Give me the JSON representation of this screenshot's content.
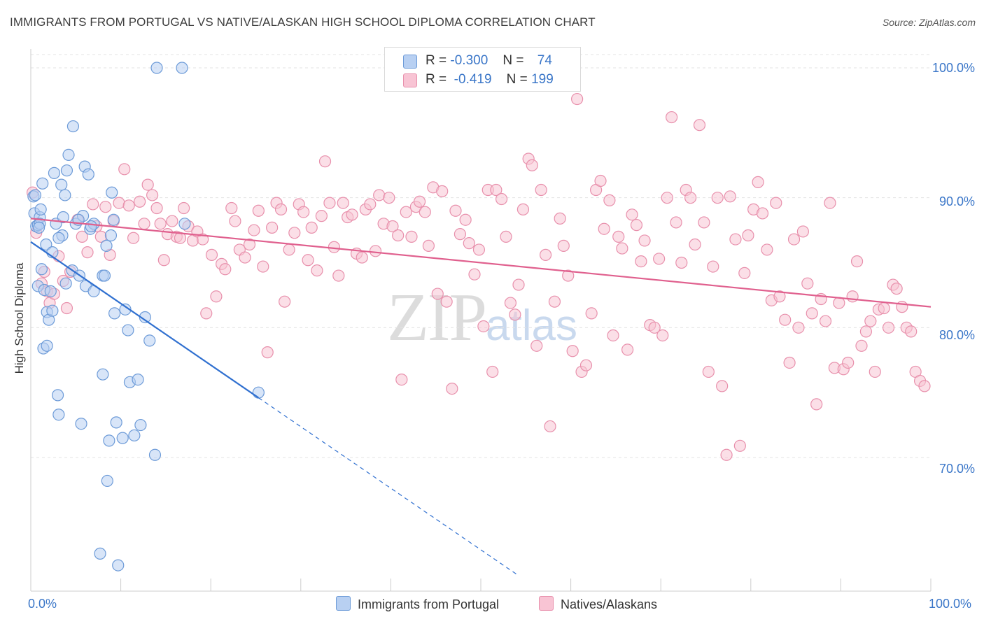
{
  "title": "IMMIGRANTS FROM PORTUGAL VS NATIVE/ALASKAN HIGH SCHOOL DIPLOMA CORRELATION CHART",
  "source": "Source: ZipAtlas.com",
  "watermark": {
    "zip": "ZIP",
    "atlas": "atlas"
  },
  "legend": {
    "r_label": "R =",
    "n_label": "N =",
    "rows": [
      {
        "r": "-0.300",
        "n": "74"
      },
      {
        "r": "-0.419",
        "n": "199"
      }
    ]
  },
  "colors": {
    "blue_fill": "#b8d0f2",
    "blue_stroke": "#6d9bd8",
    "blue_line": "#3070d0",
    "pink_fill": "#f8c4d4",
    "pink_stroke": "#e890ac",
    "pink_line": "#e0608e",
    "tick_text": "#3a76c8"
  },
  "chart_data": {
    "type": "scatter",
    "title": "IMMIGRANTS FROM PORTUGAL VS NATIVE/ALASKAN HIGH SCHOOL DIPLOMA CORRELATION CHART",
    "xlabel": "",
    "ylabel": "High School Diploma",
    "xlim": [
      0,
      100
    ],
    "ylim": [
      61,
      102
    ],
    "x_ticks": [
      "0.0%",
      "100.0%"
    ],
    "y_ticks": [
      {
        "value": 100,
        "label": "100.0%"
      },
      {
        "value": 90,
        "label": "90.0%"
      },
      {
        "value": 80,
        "label": "80.0%"
      },
      {
        "value": 70,
        "label": "70.0%"
      }
    ],
    "grid": true,
    "legend_position": "top-center",
    "series": [
      {
        "name": "Immigrants from Portugal",
        "r": -0.3,
        "n": 74,
        "trend": {
          "x0": 0,
          "y0": 86.6,
          "x1": 25.3,
          "y1": 74.6,
          "dashed_to_x": 54,
          "dashed_to_y": 61
        },
        "points": [
          [
            0.3,
            90.1
          ],
          [
            0.4,
            88.8
          ],
          [
            0.6,
            87.8
          ],
          [
            0.8,
            87.9
          ],
          [
            0.8,
            83.2
          ],
          [
            1.0,
            88.5
          ],
          [
            1.1,
            89.1
          ],
          [
            1.3,
            91.1
          ],
          [
            1.4,
            78.4
          ],
          [
            1.5,
            82.9
          ],
          [
            1.7,
            86.4
          ],
          [
            1.8,
            81.2
          ],
          [
            1.8,
            78.6
          ],
          [
            2.0,
            80.6
          ],
          [
            2.2,
            82.8
          ],
          [
            2.4,
            85.8
          ],
          [
            2.6,
            91.9
          ],
          [
            2.8,
            88.0
          ],
          [
            3.0,
            74.8
          ],
          [
            3.1,
            73.3
          ],
          [
            3.4,
            91.0
          ],
          [
            3.5,
            87.1
          ],
          [
            3.6,
            88.5
          ],
          [
            3.8,
            90.2
          ],
          [
            3.9,
            83.4
          ],
          [
            4.0,
            92.1
          ],
          [
            4.2,
            93.3
          ],
          [
            4.6,
            84.4
          ],
          [
            4.7,
            95.5
          ],
          [
            5.0,
            88.0
          ],
          [
            5.4,
            84.0
          ],
          [
            5.6,
            72.6
          ],
          [
            5.8,
            88.6
          ],
          [
            6.0,
            92.4
          ],
          [
            6.1,
            83.2
          ],
          [
            6.4,
            91.8
          ],
          [
            6.6,
            87.6
          ],
          [
            7.0,
            82.8
          ],
          [
            7.0,
            88.0
          ],
          [
            7.7,
            62.6
          ],
          [
            8.0,
            84.0
          ],
          [
            8.0,
            76.4
          ],
          [
            8.2,
            84.0
          ],
          [
            8.4,
            86.3
          ],
          [
            8.5,
            68.2
          ],
          [
            8.7,
            71.3
          ],
          [
            8.9,
            87.1
          ],
          [
            9.0,
            90.4
          ],
          [
            9.2,
            88.3
          ],
          [
            9.3,
            81.1
          ],
          [
            9.5,
            72.7
          ],
          [
            9.7,
            61.7
          ],
          [
            10.2,
            71.5
          ],
          [
            10.5,
            81.4
          ],
          [
            10.8,
            79.8
          ],
          [
            11.0,
            75.8
          ],
          [
            11.5,
            71.7
          ],
          [
            11.9,
            76.0
          ],
          [
            12.2,
            72.5
          ],
          [
            12.7,
            80.8
          ],
          [
            13.2,
            79.0
          ],
          [
            13.8,
            70.2
          ],
          [
            14.0,
            100.0
          ],
          [
            16.8,
            100.0
          ],
          [
            17.1,
            88.0
          ],
          [
            25.3,
            75.0
          ],
          [
            0.5,
            90.2
          ],
          [
            1.2,
            84.5
          ],
          [
            2.4,
            81.3
          ],
          [
            3.1,
            86.9
          ],
          [
            5.3,
            88.3
          ],
          [
            6.7,
            87.8
          ],
          [
            1.0,
            88.0
          ],
          [
            0.9,
            87.7
          ]
        ]
      },
      {
        "name": "Natives/Alaskans",
        "r": -0.419,
        "n": 199,
        "trend": {
          "x0": 0,
          "y0": 88.4,
          "x1": 100,
          "y1": 81.6
        },
        "points": [
          [
            0.2,
            90.4
          ],
          [
            0.6,
            87.3
          ],
          [
            1.2,
            83.4
          ],
          [
            1.5,
            84.3
          ],
          [
            1.8,
            82.8
          ],
          [
            2.1,
            81.9
          ],
          [
            2.6,
            82.6
          ],
          [
            3.1,
            85.5
          ],
          [
            3.6,
            83.6
          ],
          [
            4.0,
            81.5
          ],
          [
            4.4,
            84.3
          ],
          [
            5.2,
            88.3
          ],
          [
            5.7,
            87.0
          ],
          [
            6.3,
            85.8
          ],
          [
            6.9,
            89.5
          ],
          [
            7.3,
            87.8
          ],
          [
            7.8,
            87.0
          ],
          [
            8.3,
            89.3
          ],
          [
            8.8,
            85.6
          ],
          [
            9.2,
            88.2
          ],
          [
            9.8,
            89.6
          ],
          [
            10.4,
            92.2
          ],
          [
            10.9,
            89.4
          ],
          [
            11.4,
            86.9
          ],
          [
            12.1,
            89.7
          ],
          [
            12.6,
            88.0
          ],
          [
            13.0,
            91.0
          ],
          [
            13.5,
            90.2
          ],
          [
            14.0,
            89.2
          ],
          [
            14.4,
            88.0
          ],
          [
            14.8,
            85.2
          ],
          [
            15.2,
            87.2
          ],
          [
            15.7,
            88.2
          ],
          [
            16.2,
            87.0
          ],
          [
            16.6,
            86.9
          ],
          [
            17.0,
            89.2
          ],
          [
            17.5,
            87.8
          ],
          [
            18.0,
            86.7
          ],
          [
            18.5,
            87.4
          ],
          [
            19.1,
            86.8
          ],
          [
            19.5,
            81.1
          ],
          [
            20.1,
            85.6
          ],
          [
            20.6,
            82.4
          ],
          [
            21.2,
            84.9
          ],
          [
            21.6,
            84.5
          ],
          [
            22.3,
            89.2
          ],
          [
            22.7,
            88.2
          ],
          [
            23.2,
            86.0
          ],
          [
            23.8,
            85.4
          ],
          [
            24.3,
            86.4
          ],
          [
            24.8,
            87.5
          ],
          [
            25.3,
            89.0
          ],
          [
            25.8,
            84.7
          ],
          [
            26.3,
            78.1
          ],
          [
            26.8,
            87.7
          ],
          [
            27.3,
            89.6
          ],
          [
            27.8,
            89.1
          ],
          [
            28.2,
            82.0
          ],
          [
            28.7,
            86.0
          ],
          [
            29.3,
            87.3
          ],
          [
            29.8,
            89.5
          ],
          [
            30.3,
            88.9
          ],
          [
            30.8,
            85.2
          ],
          [
            31.2,
            87.7
          ],
          [
            31.8,
            84.4
          ],
          [
            32.3,
            88.6
          ],
          [
            32.7,
            92.8
          ],
          [
            33.2,
            89.6
          ],
          [
            33.7,
            86.2
          ],
          [
            34.2,
            84.0
          ],
          [
            34.7,
            89.6
          ],
          [
            35.2,
            88.5
          ],
          [
            35.7,
            88.7
          ],
          [
            36.2,
            85.7
          ],
          [
            36.8,
            85.4
          ],
          [
            37.2,
            89.1
          ],
          [
            37.7,
            89.5
          ],
          [
            38.3,
            85.9
          ],
          [
            38.7,
            90.2
          ],
          [
            39.2,
            88.0
          ],
          [
            39.8,
            90.0
          ],
          [
            40.2,
            87.8
          ],
          [
            40.8,
            87.1
          ],
          [
            41.2,
            76.0
          ],
          [
            41.7,
            88.9
          ],
          [
            42.3,
            87.0
          ],
          [
            42.8,
            89.3
          ],
          [
            43.2,
            89.7
          ],
          [
            43.8,
            88.9
          ],
          [
            44.2,
            86.3
          ],
          [
            44.7,
            90.8
          ],
          [
            45.2,
            82.6
          ],
          [
            45.7,
            90.5
          ],
          [
            46.2,
            82.0
          ],
          [
            46.8,
            75.3
          ],
          [
            47.2,
            89.0
          ],
          [
            47.7,
            87.2
          ],
          [
            48.3,
            88.3
          ],
          [
            48.7,
            86.5
          ],
          [
            49.3,
            84.1
          ],
          [
            49.8,
            86.0
          ],
          [
            50.3,
            80.1
          ],
          [
            50.8,
            90.6
          ],
          [
            51.3,
            76.6
          ],
          [
            51.7,
            90.6
          ],
          [
            52.3,
            89.9
          ],
          [
            52.8,
            87.0
          ],
          [
            53.3,
            81.9
          ],
          [
            53.8,
            81.0
          ],
          [
            54.2,
            83.3
          ],
          [
            54.7,
            89.1
          ],
          [
            55.3,
            93.0
          ],
          [
            55.7,
            92.5
          ],
          [
            56.2,
            78.6
          ],
          [
            56.7,
            90.6
          ],
          [
            57.2,
            85.6
          ],
          [
            57.7,
            72.4
          ],
          [
            58.2,
            82.0
          ],
          [
            58.8,
            88.4
          ],
          [
            59.2,
            86.3
          ],
          [
            59.7,
            84.0
          ],
          [
            60.2,
            78.2
          ],
          [
            60.7,
            97.6
          ],
          [
            61.2,
            76.6
          ],
          [
            61.7,
            77.1
          ],
          [
            62.3,
            81.1
          ],
          [
            62.8,
            90.6
          ],
          [
            63.3,
            91.3
          ],
          [
            63.7,
            87.6
          ],
          [
            64.3,
            89.8
          ],
          [
            64.7,
            79.4
          ],
          [
            65.3,
            87.0
          ],
          [
            65.7,
            86.1
          ],
          [
            66.3,
            78.3
          ],
          [
            66.8,
            88.7
          ],
          [
            67.3,
            87.9
          ],
          [
            67.8,
            85.1
          ],
          [
            68.2,
            86.7
          ],
          [
            68.8,
            80.2
          ],
          [
            69.3,
            80.0
          ],
          [
            69.8,
            85.3
          ],
          [
            70.2,
            79.4
          ],
          [
            70.7,
            90.0
          ],
          [
            71.2,
            96.2
          ],
          [
            71.7,
            88.1
          ],
          [
            72.3,
            85.0
          ],
          [
            72.8,
            90.6
          ],
          [
            73.3,
            90.0
          ],
          [
            73.8,
            86.4
          ],
          [
            74.3,
            95.6
          ],
          [
            74.8,
            88.1
          ],
          [
            75.3,
            76.6
          ],
          [
            75.8,
            84.7
          ],
          [
            76.3,
            90.0
          ],
          [
            76.8,
            75.5
          ],
          [
            77.3,
            70.2
          ],
          [
            77.7,
            90.1
          ],
          [
            78.3,
            86.8
          ],
          [
            78.8,
            70.9
          ],
          [
            79.3,
            84.2
          ],
          [
            79.7,
            87.1
          ],
          [
            80.3,
            89.1
          ],
          [
            80.8,
            91.2
          ],
          [
            81.3,
            88.8
          ],
          [
            81.8,
            86.0
          ],
          [
            82.3,
            82.1
          ],
          [
            82.8,
            89.6
          ],
          [
            83.2,
            82.4
          ],
          [
            83.8,
            80.6
          ],
          [
            84.3,
            77.3
          ],
          [
            84.8,
            86.8
          ],
          [
            85.3,
            80.0
          ],
          [
            85.8,
            87.4
          ],
          [
            86.3,
            83.4
          ],
          [
            86.8,
            81.1
          ],
          [
            87.3,
            74.1
          ],
          [
            87.8,
            82.2
          ],
          [
            88.3,
            80.5
          ],
          [
            88.8,
            89.6
          ],
          [
            89.3,
            76.9
          ],
          [
            89.8,
            81.9
          ],
          [
            90.3,
            76.8
          ],
          [
            90.8,
            77.3
          ],
          [
            91.3,
            82.4
          ],
          [
            91.8,
            85.1
          ],
          [
            92.3,
            78.6
          ],
          [
            92.8,
            79.7
          ],
          [
            93.3,
            80.5
          ],
          [
            93.8,
            76.6
          ],
          [
            94.2,
            81.4
          ],
          [
            94.8,
            81.5
          ],
          [
            95.3,
            80.0
          ],
          [
            95.8,
            83.3
          ],
          [
            96.2,
            83.0
          ],
          [
            96.8,
            81.6
          ],
          [
            97.3,
            80.0
          ],
          [
            97.8,
            79.7
          ],
          [
            98.3,
            76.6
          ],
          [
            98.8,
            75.9
          ],
          [
            99.3,
            75.5
          ]
        ]
      }
    ]
  },
  "bottom_legend": [
    "Immigrants from Portugal",
    "Natives/Alaskans"
  ]
}
